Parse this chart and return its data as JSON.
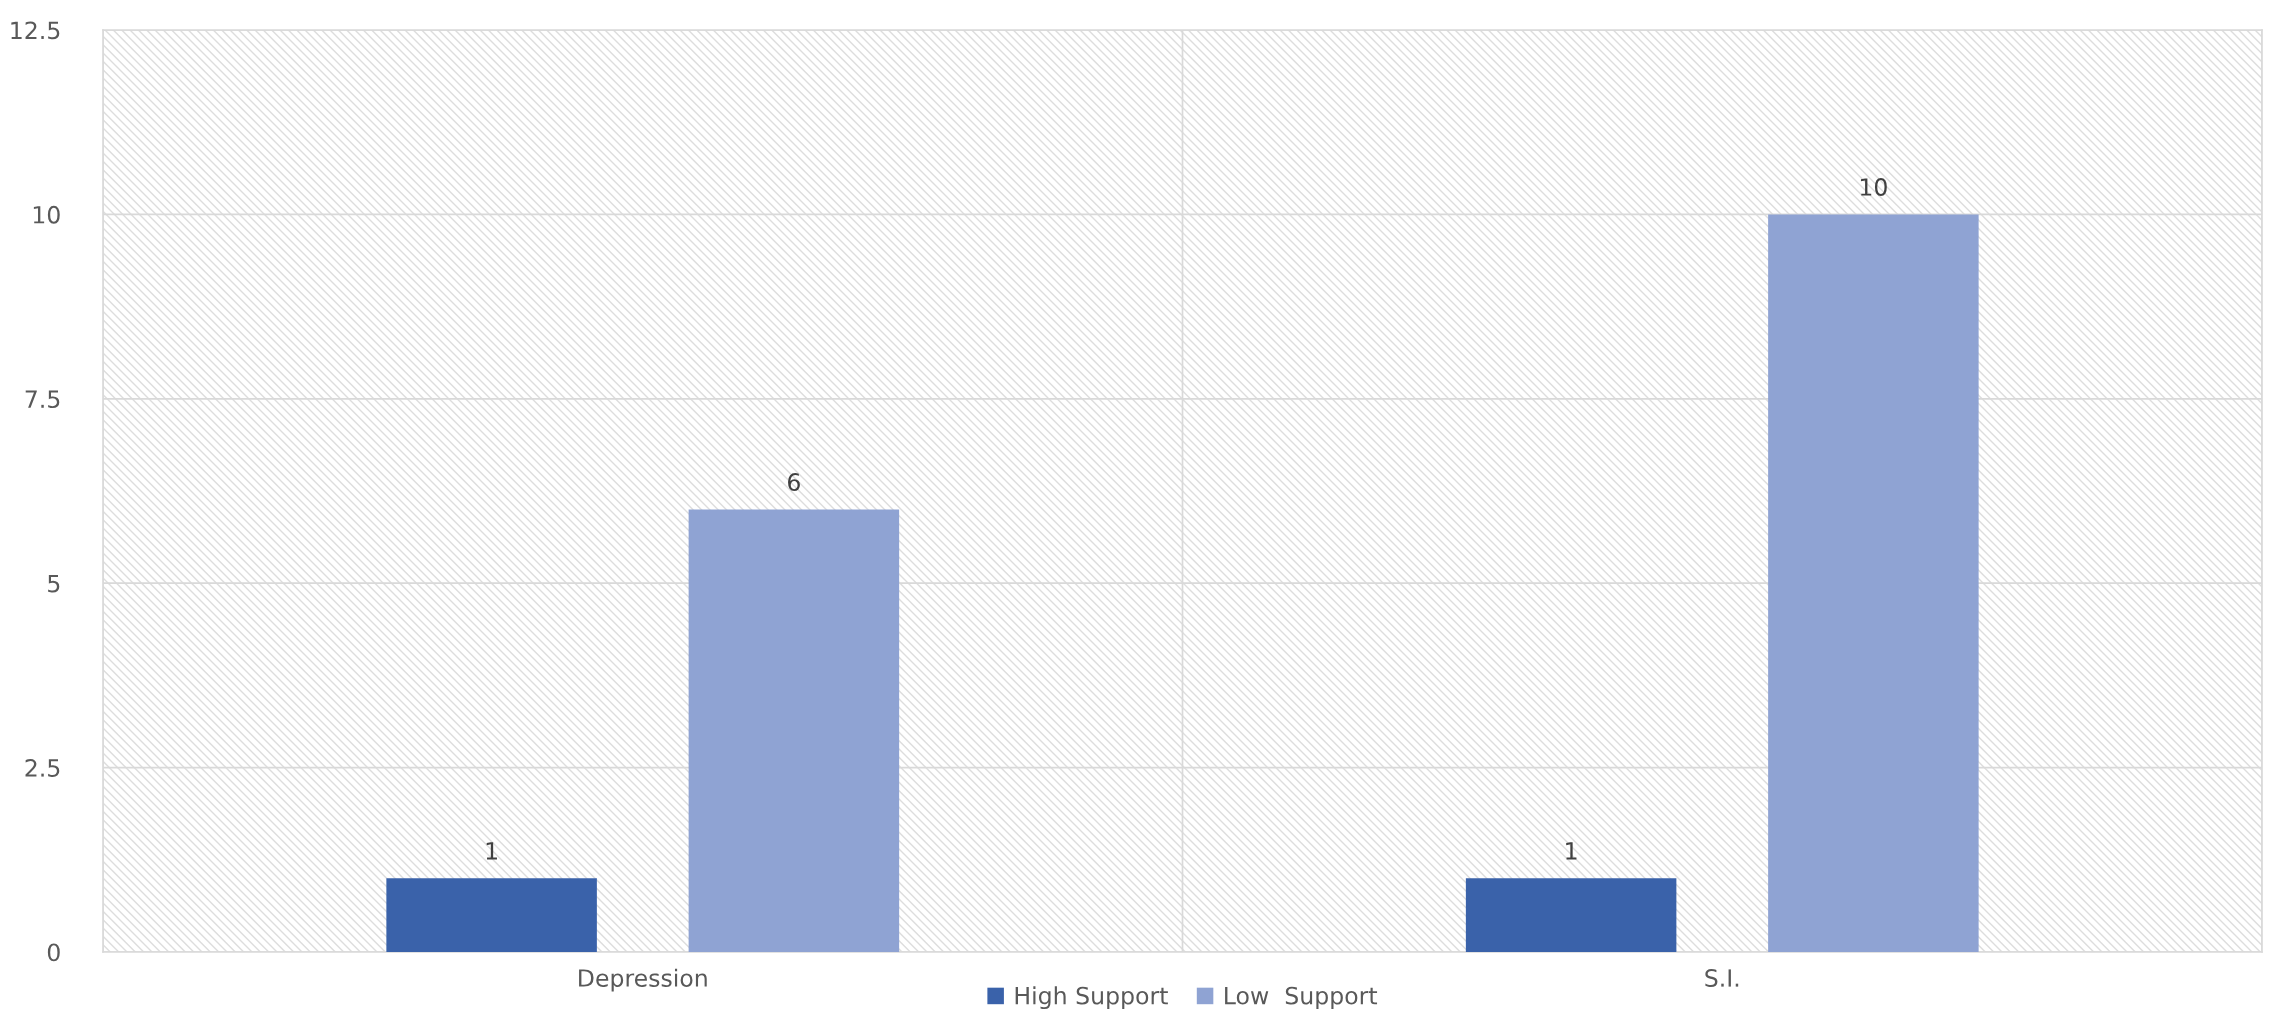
{
  "chart_data": {
    "type": "bar",
    "categories": [
      "Depression",
      "S.I."
    ],
    "series": [
      {
        "name": "High Support",
        "color": "#3a62aa",
        "values": [
          1,
          1
        ]
      },
      {
        "name": "Low  Support",
        "color": "#8fa3d3",
        "values": [
          6,
          10
        ]
      }
    ],
    "ylim": [
      0,
      12.5
    ],
    "yticks": [
      0,
      2.5,
      5,
      7.5,
      10,
      12.5
    ],
    "grid": true,
    "legend": "bottom",
    "data_labels": true
  }
}
